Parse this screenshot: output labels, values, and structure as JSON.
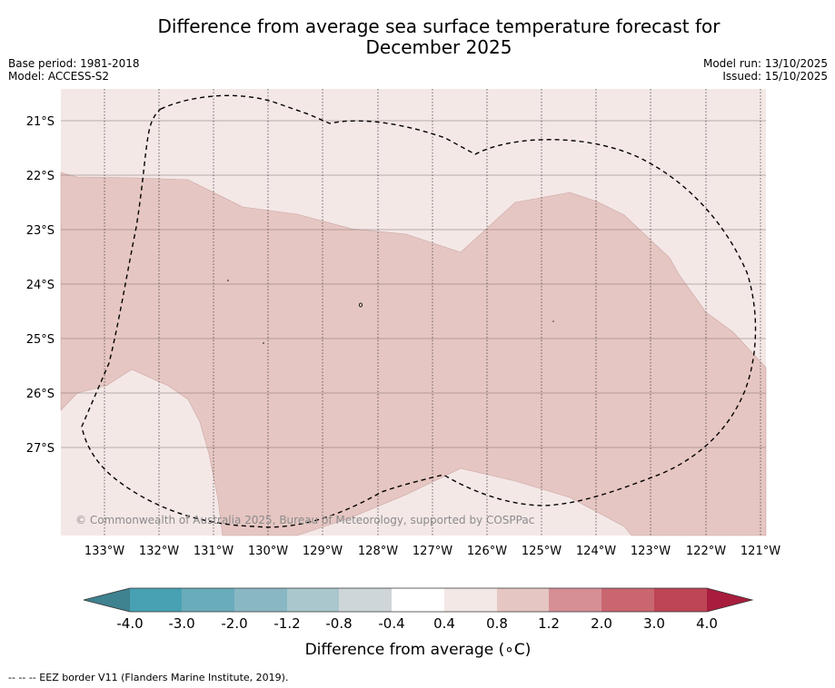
{
  "header": {
    "title_line1": "Difference from average sea surface temperature forecast for",
    "title_line2": "December 2025",
    "base_period": "Base period: 1981-2018",
    "model": "Model: ACCESS-S2",
    "model_run": "Model run: 13/10/2025",
    "issued": "Issued: 15/10/2025"
  },
  "map": {
    "lat_labels": [
      "21°S",
      "22°S",
      "23°S",
      "24°S",
      "25°S",
      "26°S",
      "27°S"
    ],
    "lon_labels": [
      "133°W",
      "132°W",
      "131°W",
      "130°W",
      "129°W",
      "128°W",
      "127°W",
      "126°W",
      "125°W",
      "124°W",
      "123°W",
      "122°W",
      "121°W"
    ],
    "copyright": "© Commonwealth of Australia 2025, Bureau of Meteorology, supported by COSPPac",
    "colors": {
      "band_0_4_0_8": "#f4e8e7",
      "band_0_8_1_2": "#e6c6c2"
    }
  },
  "colorbar": {
    "label": "Difference from average (∘C)",
    "ticks": [
      "-4.0",
      "-3.0",
      "-2.0",
      "-1.2",
      "-0.8",
      "-0.4",
      "0.4",
      "0.8",
      "1.2",
      "2.0",
      "3.0",
      "4.0"
    ],
    "colors": [
      "#3f8290",
      "#48a1b2",
      "#69acbb",
      "#89b8c4",
      "#a9c7cc",
      "#cfd6d9",
      "#ffffff",
      "#f4e8e7",
      "#e6c6c2",
      "#d78f96",
      "#c96670",
      "#bd4555",
      "#a81d3d"
    ]
  },
  "footer": {
    "legend_text": "--  --  -- EEZ border V11 (Flanders Marine Institute, 2019)."
  }
}
